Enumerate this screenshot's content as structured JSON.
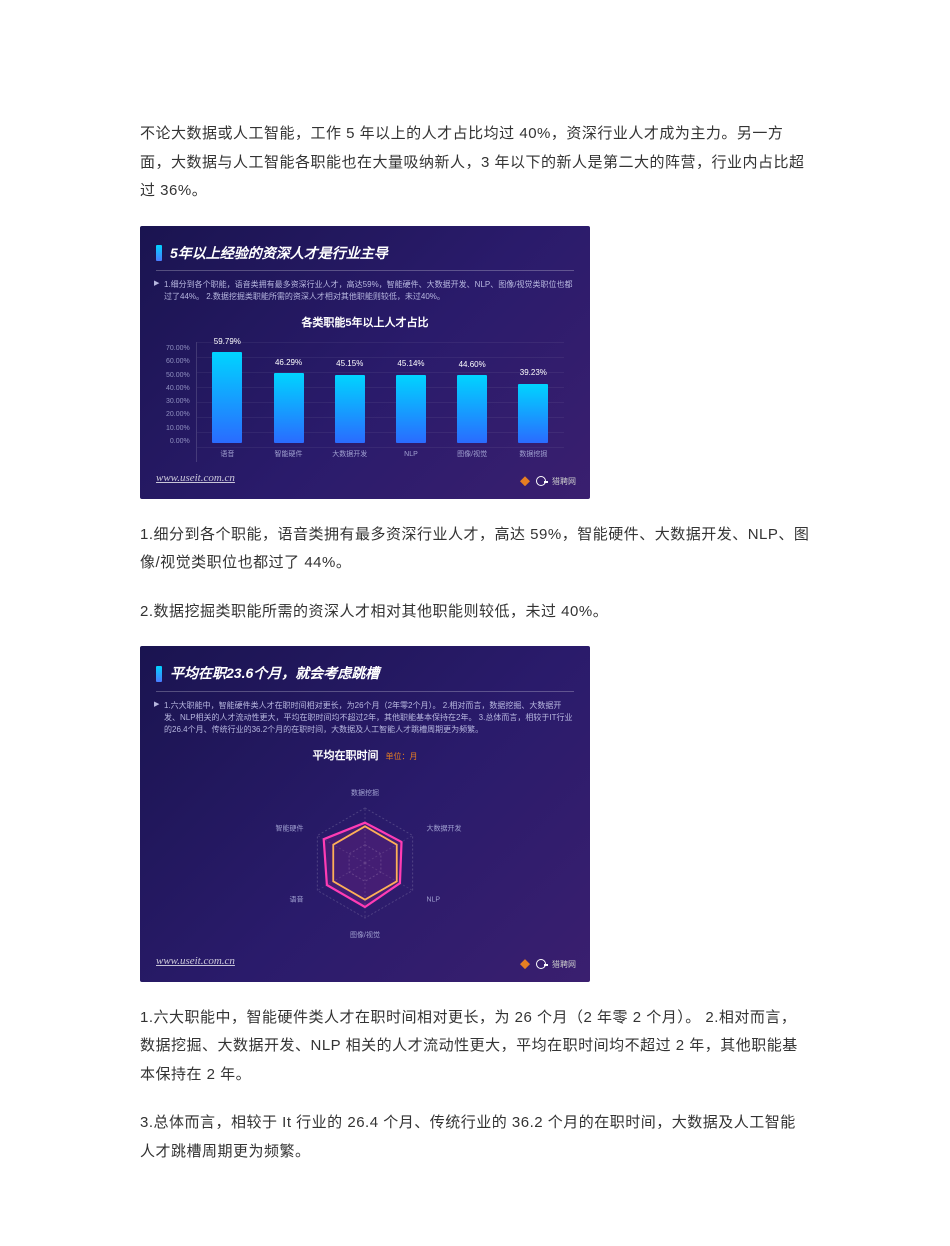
{
  "paragraphs": {
    "p1": "不论大数据或人工智能，工作 5 年以上的人才占比均过 40%，资深行业人才成为主力。另一方面，大数据与人工智能各职能也在大量吸纳新人，3 年以下的新人是第二大的阵营，行业内占比超过 36%。",
    "p2": "1.细分到各个职能，语音类拥有最多资深行业人才，高达 59%，智能硬件、大数据开发、NLP、图像/视觉类职位也都过了 44%。",
    "p3": "2.数据挖掘类职能所需的资深人才相对其他职能则较低，未过 40%。",
    "p4": "1.六大职能中，智能硬件类人才在职时间相对更长，为 26 个月（2 年零 2 个月）。  2.相对而言，数据挖掘、大数据开发、NLP 相关的人才流动性更大，平均在职时间均不超过 2 年，其他职能基本保持在 2 年。",
    "p5": "3.总体而言，相较于 It 行业的 26.4 个月、传统行业的 36.2 个月的在职时间，大数据及人工智能人才跳槽周期更为频繁。"
  },
  "chart1": {
    "type": "bar",
    "title": "5年以上经验的资深人才是行业主导",
    "desc": "1.细分到各个职能，语音类拥有最多资深行业人才，高达59%，智能硬件、大数据开发、NLP、图像/视觉类职位也都过了44%。\n2.数据挖掘类职能所需的资深人才相对其他职能则较低，未过40%。",
    "subtitle": "各类职能5年以上人才占比",
    "ylim": [
      0,
      70
    ],
    "ytick_step": 10,
    "yticks": [
      "70.00%",
      "60.00%",
      "50.00%",
      "40.00%",
      "30.00%",
      "20.00%",
      "10.00%",
      "0.00%"
    ],
    "categories": [
      "语音",
      "智能硬件",
      "大数据开发",
      "NLP",
      "图像/视觉",
      "数据挖掘"
    ],
    "values": [
      59.79,
      46.29,
      45.15,
      45.14,
      44.6,
      39.23
    ],
    "value_labels": [
      "59.79%",
      "46.29%",
      "45.15%",
      "45.14%",
      "44.60%",
      "39.23%"
    ],
    "bar_gradient": [
      "#00d4ff",
      "#2a6bff"
    ],
    "background": "#1a1450",
    "watermark": "www.useit.com.cn",
    "brand_text": "猎聘网"
  },
  "chart2": {
    "type": "radar",
    "title": "平均在职23.6个月，就会考虑跳槽",
    "desc": "1.六大职能中，智能硬件类人才在职时间相对更长，为26个月（2年零2个月）。\n2.相对而言，数据挖掘、大数据开发、NLP相关的人才流动性更大，平均在职时间均不超过2年，其他职能基本保持在2年。\n3.总体而言，相较于IT行业的26.4个月、传统行业的36.2个月的在职时间，大数据及人工智能人才跳槽周期更为频繁。",
    "subtitle": "平均在职时间",
    "unit": "单位：月",
    "axes": [
      "数据挖掘",
      "大数据开发",
      "NLP",
      "图像/视觉",
      "语音",
      "智能硬件"
    ],
    "axis_max": 30,
    "ring_values": [
      10,
      20,
      30
    ],
    "series1_name": "平均在职时间",
    "series1_values": [
      22,
      23,
      22,
      24,
      24,
      26
    ],
    "series1_color": "#ff3cb4",
    "series2_values": [
      20,
      20,
      20,
      20,
      20,
      20
    ],
    "series2_color": "#ffc04a",
    "background": "#1a1450",
    "watermark": "www.useit.com.cn",
    "brand_text": "猎聘网"
  }
}
